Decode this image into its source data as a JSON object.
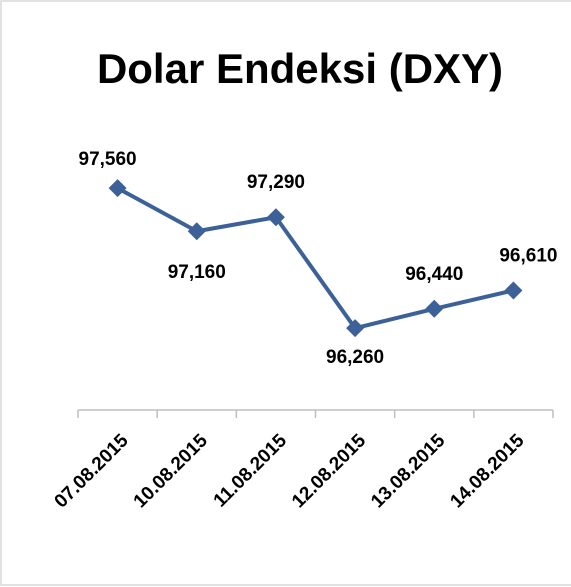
{
  "chart_data": {
    "type": "line",
    "title": "Dolar Endeksi (DXY)",
    "categories": [
      "07.08.2015",
      "10.08.2015",
      "11.08.2015",
      "12.08.2015",
      "13.08.2015",
      "14.08.2015"
    ],
    "values": [
      97.56,
      97.16,
      97.29,
      96.26,
      96.44,
      96.61
    ],
    "value_labels": [
      "97,560",
      "97,160",
      "97,290",
      "96,260",
      "96,440",
      "96,610"
    ],
    "color": "#3c6198",
    "ylim": [
      95.5,
      98.1
    ]
  }
}
